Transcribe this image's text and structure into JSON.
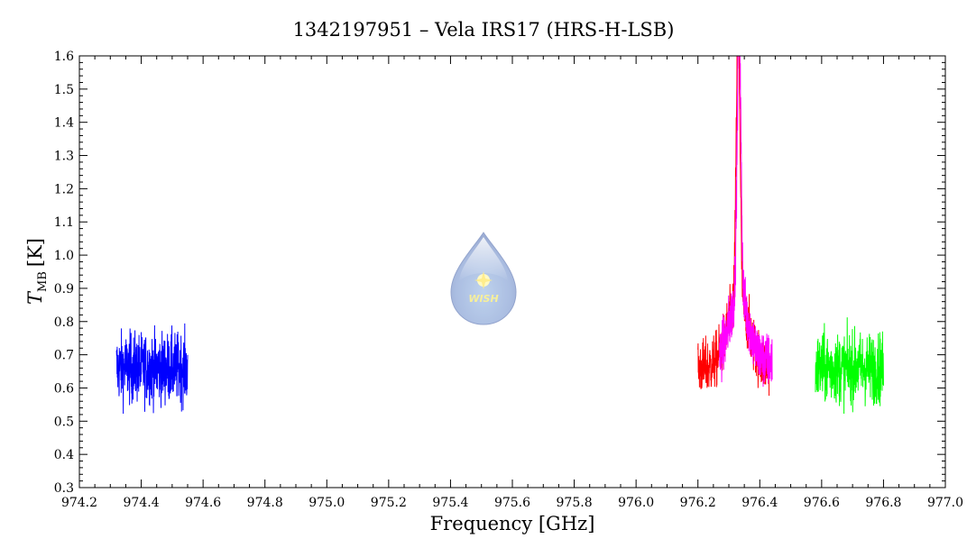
{
  "chart_data": {
    "type": "line",
    "title": "1342197951 – Vela IRS17 (HRS-H-LSB)",
    "xlabel": "Frequency [GHz]",
    "ylabel": {
      "main": "T",
      "sub": "MB",
      "unit": "[K]"
    },
    "xlim": [
      974.2,
      977.0
    ],
    "ylim": [
      0.3,
      1.6
    ],
    "x_ticks": [
      "974.2",
      "974.4",
      "974.6",
      "974.8",
      "975.0",
      "975.2",
      "975.4",
      "975.6",
      "975.8",
      "976.0",
      "976.2",
      "976.4",
      "976.6",
      "976.8",
      "977.0"
    ],
    "y_ticks": [
      "0.3",
      "0.4",
      "0.5",
      "0.6",
      "0.7",
      "0.8",
      "0.9",
      "1.0",
      "1.1",
      "1.2",
      "1.3",
      "1.4",
      "1.5",
      "1.6"
    ],
    "grid": false,
    "series": [
      {
        "color": "#0000ff",
        "x_range": [
          974.32,
          974.55
        ],
        "baseline": 0.66,
        "noise": 0.075,
        "peaks": []
      },
      {
        "color": "#ff0000",
        "x_range": [
          976.2,
          976.43
        ],
        "baseline": 0.66,
        "noise": 0.06,
        "peaks": [
          {
            "center": 976.33,
            "amplitude": 0.85,
            "width": 0.006
          },
          {
            "center": 976.33,
            "amplitude": 0.2,
            "width": 0.035
          }
        ]
      },
      {
        "color": "#ff00ff",
        "x_range": [
          976.27,
          976.44
        ],
        "baseline": 0.68,
        "noise": 0.06,
        "peaks": [
          {
            "center": 976.333,
            "amplitude": 0.82,
            "width": 0.006
          },
          {
            "center": 976.333,
            "amplitude": 0.2,
            "width": 0.03
          }
        ]
      },
      {
        "color": "#00ff00",
        "x_range": [
          976.58,
          976.8
        ],
        "baseline": 0.66,
        "noise": 0.075,
        "peaks": []
      }
    ]
  },
  "logo": {
    "text": "WISH"
  }
}
